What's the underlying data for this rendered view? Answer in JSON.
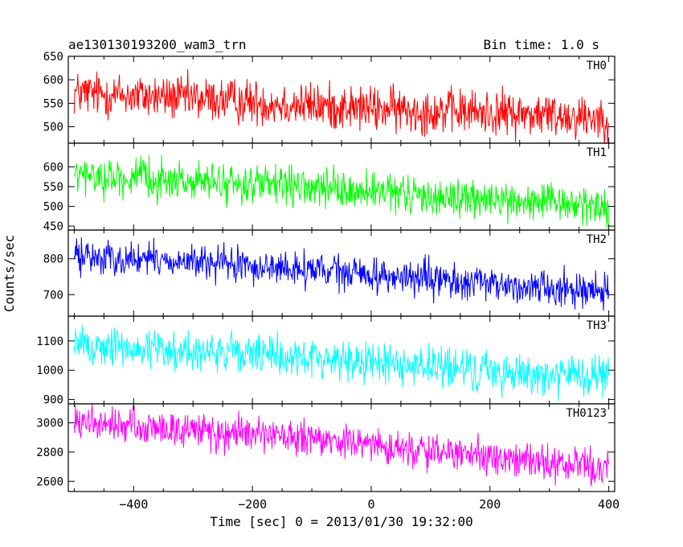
{
  "header": {
    "title": "ae130130193200_wam3_trn",
    "bin_time": "Bin time: 1.0 s"
  },
  "ylabel": "Counts/sec",
  "xlabel": "Time [sec] 0 = 2013/01/30 19:32:00",
  "chart_data": {
    "type": "line",
    "xlim": [
      -510,
      410
    ],
    "x_ticks": [
      -400,
      -200,
      0,
      200,
      400
    ],
    "x_tick_labels": [
      "−400",
      "−200",
      "0",
      "200",
      "400"
    ],
    "panels": [
      {
        "name": "TH0",
        "color": "#ff0000",
        "ylim": [
          465,
          650
        ],
        "y_ticks": [
          500,
          550,
          600,
          650
        ],
        "y_tick_labels": [
          "500",
          "550",
          "600",
          "650"
        ],
        "trend": [
          [
            -500,
            572
          ],
          [
            -300,
            560
          ],
          [
            0,
            538
          ],
          [
            200,
            530
          ],
          [
            400,
            520
          ]
        ],
        "noise": 24
      },
      {
        "name": "TH1",
        "color": "#00ff00",
        "ylim": [
          440,
          660
        ],
        "y_ticks": [
          450,
          500,
          550,
          600
        ],
        "y_tick_labels": [
          "450",
          "500",
          "550",
          "600"
        ],
        "trend": [
          [
            -500,
            578
          ],
          [
            -200,
            555
          ],
          [
            0,
            535
          ],
          [
            200,
            515
          ],
          [
            400,
            500
          ]
        ],
        "noise": 24
      },
      {
        "name": "TH2",
        "color": "#0000ff",
        "ylim": [
          640,
          880
        ],
        "y_ticks": [
          700,
          800
        ],
        "y_tick_labels": [
          "700",
          "800"
        ],
        "trend": [
          [
            -500,
            808
          ],
          [
            -300,
            790
          ],
          [
            0,
            755
          ],
          [
            200,
            728
          ],
          [
            400,
            712
          ]
        ],
        "noise": 24
      },
      {
        "name": "TH3",
        "color": "#00ffff",
        "ylim": [
          885,
          1185
        ],
        "y_ticks": [
          900,
          1000,
          1100
        ],
        "y_tick_labels": [
          "900",
          "1000",
          "1100"
        ],
        "trend": [
          [
            -500,
            1085
          ],
          [
            -300,
            1065
          ],
          [
            0,
            1030
          ],
          [
            200,
            995
          ],
          [
            400,
            975
          ]
        ],
        "noise": 35
      },
      {
        "name": "TH0123",
        "color": "#ff00ff",
        "ylim": [
          2530,
          3130
        ],
        "y_ticks": [
          2600,
          2800,
          3000
        ],
        "y_tick_labels": [
          "2600",
          "2800",
          "3000"
        ],
        "trend": [
          [
            -500,
            3000
          ],
          [
            -300,
            2950
          ],
          [
            0,
            2850
          ],
          [
            200,
            2760
          ],
          [
            400,
            2690
          ]
        ],
        "noise": 60
      }
    ]
  }
}
